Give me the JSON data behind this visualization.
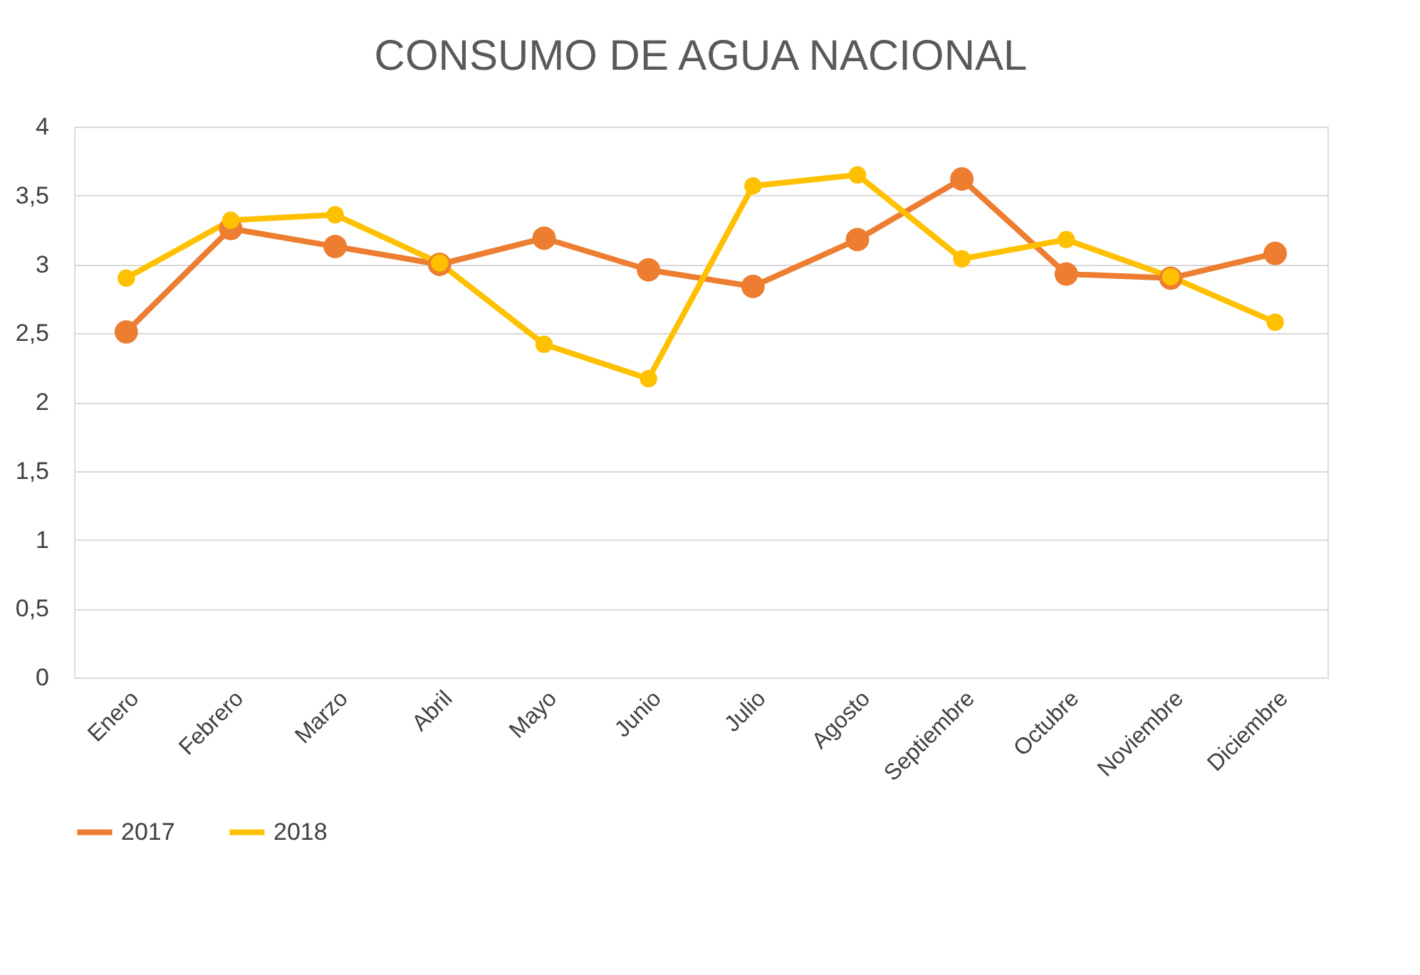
{
  "chart_data": {
    "type": "line",
    "title": "CONSUMO DE AGUA NACIONAL",
    "categories": [
      "Enero",
      "Febrero",
      "Marzo",
      "Abril",
      "Mayo",
      "Junio",
      "Julio",
      "Agosto",
      "Septiembre",
      "Octubre",
      "Noviembre",
      "Diciembre"
    ],
    "series": [
      {
        "name": "2017",
        "color": "#ed7d31",
        "values": [
          2.51,
          3.26,
          3.13,
          3.0,
          3.19,
          2.96,
          2.84,
          3.18,
          3.62,
          2.93,
          2.9,
          3.08
        ]
      },
      {
        "name": "2018",
        "color": "#ffc000",
        "values": [
          2.9,
          3.32,
          3.36,
          3.01,
          2.42,
          2.17,
          3.57,
          3.65,
          3.04,
          3.18,
          2.91,
          2.58
        ]
      }
    ],
    "ylim": [
      0,
      4
    ],
    "yticks": [
      0,
      {
        "value": 0.5,
        "label": "0,5"
      },
      1,
      {
        "value": 1.5,
        "label": "1,5"
      },
      2,
      {
        "value": 2.5,
        "label": "2,5"
      },
      3,
      {
        "value": 3.5,
        "label": "3,5"
      },
      4
    ],
    "grid": "y",
    "legend": "bottom",
    "marker": "circle",
    "line_style": "solid"
  }
}
